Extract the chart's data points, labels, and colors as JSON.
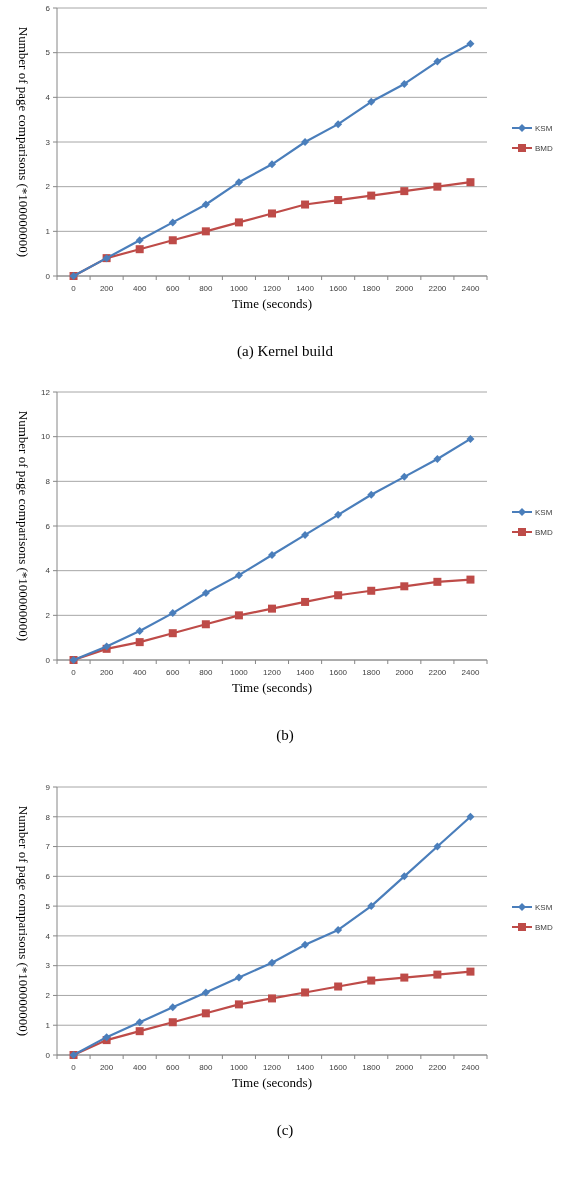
{
  "chart_data": [
    {
      "type": "line",
      "xlabel": "Time (seconds)",
      "ylabel": "Number of page comparisons (*100000000)",
      "annotations": [
        "(a)  Kernel build"
      ],
      "categories": [
        "0",
        "200",
        "400",
        "600",
        "800",
        "1000",
        "1200",
        "1400",
        "1600",
        "1800",
        "2000",
        "2200",
        "2400"
      ],
      "ylim": [
        0,
        6
      ],
      "yticks": [
        0,
        1,
        2,
        3,
        4,
        5,
        6
      ],
      "grid": "y",
      "legend": "right",
      "series": [
        {
          "name": "KSM",
          "color": "#4a7ebb",
          "marker": "diamond",
          "values": [
            0,
            0.4,
            0.8,
            1.2,
            1.6,
            2.1,
            2.5,
            3.0,
            3.4,
            3.9,
            4.3,
            4.8,
            5.2
          ]
        },
        {
          "name": "BMD",
          "color": "#be4b48",
          "marker": "square",
          "values": [
            0,
            0.4,
            0.6,
            0.8,
            1.0,
            1.2,
            1.4,
            1.6,
            1.7,
            1.8,
            1.9,
            2.0,
            2.1
          ]
        }
      ]
    },
    {
      "type": "line",
      "xlabel": "Time (seconds)",
      "ylabel": "Number of page comparisons (*100000000)",
      "annotations": [
        "(b)"
      ],
      "categories": [
        "0",
        "200",
        "400",
        "600",
        "800",
        "1000",
        "1200",
        "1400",
        "1600",
        "1800",
        "2000",
        "2200",
        "2400"
      ],
      "ylim": [
        0,
        12
      ],
      "yticks": [
        0,
        2,
        4,
        6,
        8,
        10,
        12
      ],
      "grid": "y",
      "legend": "right",
      "series": [
        {
          "name": "KSM",
          "color": "#4a7ebb",
          "marker": "diamond",
          "values": [
            0,
            0.6,
            1.3,
            2.1,
            3.0,
            3.8,
            4.7,
            5.6,
            6.5,
            7.4,
            8.2,
            9.0,
            9.9
          ]
        },
        {
          "name": "BMD",
          "color": "#be4b48",
          "marker": "square",
          "values": [
            0,
            0.5,
            0.8,
            1.2,
            1.6,
            2.0,
            2.3,
            2.6,
            2.9,
            3.1,
            3.3,
            3.5,
            3.6
          ]
        }
      ]
    },
    {
      "type": "line",
      "xlabel": "Time (seconds)",
      "ylabel": "Number of page comparisons (*100000000)",
      "annotations": [
        "(c)"
      ],
      "categories": [
        "0",
        "200",
        "400",
        "600",
        "800",
        "1000",
        "1200",
        "1400",
        "1600",
        "1800",
        "2000",
        "2200",
        "2400"
      ],
      "ylim": [
        0,
        9
      ],
      "yticks": [
        0,
        1,
        2,
        3,
        4,
        5,
        6,
        7,
        8,
        9
      ],
      "grid": "y",
      "legend": "right",
      "series": [
        {
          "name": "KSM",
          "color": "#4a7ebb",
          "marker": "diamond",
          "values": [
            0,
            0.6,
            1.1,
            1.6,
            2.1,
            2.6,
            3.1,
            3.7,
            4.2,
            5.0,
            6.0,
            7.0,
            8.0
          ]
        },
        {
          "name": "BMD",
          "color": "#be4b48",
          "marker": "square",
          "values": [
            0,
            0.5,
            0.8,
            1.1,
            1.4,
            1.7,
            1.9,
            2.1,
            2.3,
            2.5,
            2.6,
            2.7,
            2.8
          ]
        }
      ]
    }
  ]
}
